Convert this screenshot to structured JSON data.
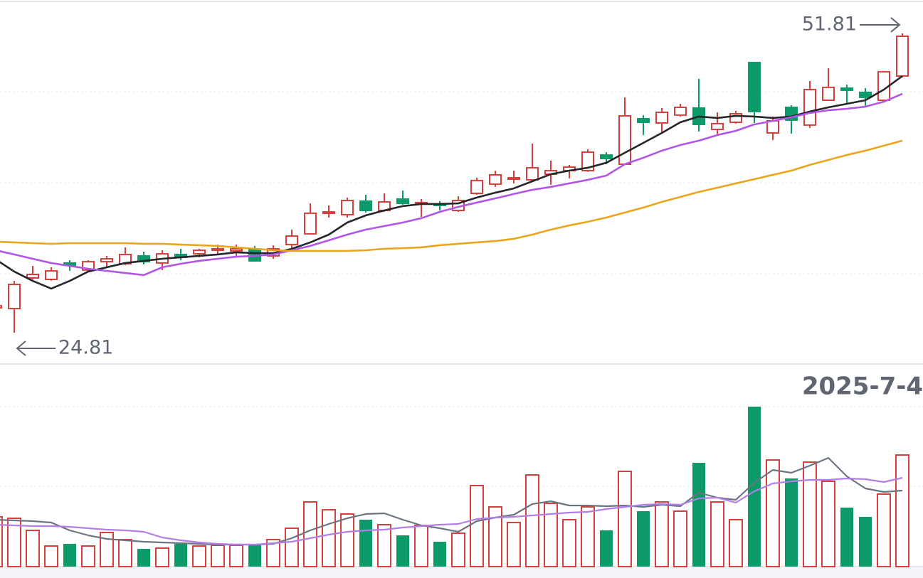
{
  "chart_data": {
    "type": "candlestick",
    "ylim": [
      21.99,
      54.82
    ],
    "open": [
      27.06,
      26.99,
      29.75,
      29.62,
      31.1,
      30.46,
      31.22,
      31.03,
      31.74,
      31.1,
      31.87,
      31.93,
      32.25,
      32.19,
      32.31,
      31.74,
      32.76,
      33.73,
      35.59,
      35.46,
      36.68,
      35.84,
      36.87,
      36.42,
      36.42,
      35.84,
      37.38,
      38.21,
      38.66,
      38.6,
      39.11,
      39.43,
      39.43,
      40.84,
      40.01,
      44.11,
      43.73,
      44.44,
      45.08,
      43.15,
      43.79,
      49.18,
      42.83,
      45.14,
      43.54,
      45.78,
      46.87,
      46.49,
      45.78,
      47.96
    ],
    "high": [
      27.57,
      29.49,
      30.84,
      30.71,
      31.35,
      31.35,
      31.74,
      32.51,
      32.12,
      32.25,
      32.38,
      32.38,
      32.76,
      32.76,
      32.64,
      32.7,
      34.11,
      36.48,
      36.29,
      37.0,
      37.25,
      37.38,
      37.64,
      36.87,
      36.68,
      37.12,
      38.79,
      39.43,
      39.43,
      41.87,
      40.33,
      39.95,
      41.36,
      41.1,
      46.04,
      44.44,
      45.08,
      45.46,
      47.71,
      44.69,
      44.82,
      49.18,
      44.31,
      45.33,
      47.51,
      48.67,
      47.19,
      46.87,
      48.35,
      51.81
    ],
    "low": [
      26.93,
      24.81,
      29.62,
      29.49,
      30.39,
      30.33,
      30.78,
      30.9,
      30.97,
      30.46,
      31.35,
      31.61,
      31.87,
      31.74,
      31.22,
      31.48,
      32.44,
      33.66,
      35.2,
      35.2,
      35.65,
      35.71,
      36.36,
      35.26,
      35.84,
      35.71,
      37.25,
      37.96,
      38.28,
      38.47,
      38.15,
      38.73,
      39.31,
      40.01,
      39.95,
      42.64,
      42.9,
      44.31,
      42.96,
      42.64,
      43.67,
      43.73,
      42.19,
      42.77,
      43.28,
      45.72,
      45.46,
      45.2,
      45.65,
      47.83
    ],
    "close": [
      27.25,
      29.17,
      30.07,
      30.39,
      30.9,
      31.22,
      31.48,
      31.87,
      31.22,
      31.93,
      31.61,
      32.25,
      32.38,
      32.38,
      31.29,
      32.38,
      33.53,
      35.59,
      35.71,
      36.74,
      35.84,
      36.61,
      36.48,
      36.55,
      36.29,
      36.74,
      38.54,
      39.05,
      38.79,
      39.69,
      39.43,
      39.75,
      41.1,
      40.52,
      44.37,
      43.79,
      44.69,
      45.14,
      43.6,
      43.67,
      44.56,
      44.76,
      43.92,
      43.99,
      46.74,
      46.94,
      46.68,
      46.04,
      48.35,
      51.55
    ],
    "up_color": "#d6403c",
    "down_color": "#0c9a68",
    "moving_averages": [
      {
        "color": "#24262b",
        "values": [
          31.42,
          30.33,
          29.49,
          28.79,
          29.49,
          30.33,
          30.71,
          31.1,
          31.29,
          31.48,
          31.61,
          31.74,
          31.87,
          32.06,
          31.99,
          31.99,
          32.38,
          32.96,
          33.66,
          34.75,
          35.39,
          35.84,
          36.23,
          36.42,
          36.42,
          36.48,
          37.0,
          37.44,
          37.83,
          38.47,
          39.11,
          39.43,
          39.69,
          40.14,
          41.04,
          41.93,
          42.83,
          43.79,
          44.31,
          44.18,
          44.37,
          44.31,
          44.18,
          44.31,
          44.76,
          45.14,
          45.46,
          45.78,
          46.74,
          47.96
        ]
      },
      {
        "color": "#b055e6",
        "values": [
          32.25,
          31.87,
          31.48,
          31.1,
          30.84,
          30.58,
          30.39,
          30.2,
          30.01,
          30.71,
          31.03,
          31.29,
          31.48,
          31.67,
          31.74,
          31.87,
          32.25,
          32.64,
          33.15,
          33.66,
          34.11,
          34.43,
          34.75,
          35.14,
          35.71,
          36.16,
          36.55,
          36.93,
          37.32,
          37.7,
          37.96,
          38.28,
          38.6,
          38.98,
          40.01,
          40.59,
          41.23,
          41.74,
          42.13,
          42.64,
          43.02,
          43.6,
          43.92,
          44.24,
          44.63,
          44.88,
          45.01,
          45.2,
          45.65,
          46.36
        ]
      },
      {
        "color": "#eaa51a",
        "values": [
          33.02,
          32.96,
          32.89,
          32.83,
          32.89,
          32.89,
          32.89,
          32.89,
          32.83,
          32.83,
          32.76,
          32.7,
          32.64,
          32.51,
          32.38,
          32.25,
          32.19,
          32.19,
          32.19,
          32.19,
          32.25,
          32.38,
          32.44,
          32.51,
          32.7,
          32.83,
          32.96,
          33.08,
          33.28,
          33.66,
          34.11,
          34.49,
          34.82,
          35.2,
          35.65,
          36.1,
          36.61,
          37.06,
          37.51,
          37.89,
          38.28,
          38.66,
          39.05,
          39.43,
          39.95,
          40.39,
          40.84,
          41.23,
          41.68,
          42.13
        ]
      }
    ],
    "annotations": [
      {
        "value": 51.81,
        "label": "51.81"
      },
      {
        "value": 24.81,
        "label": "24.81"
      }
    ],
    "date": "2025-7-4",
    "volume": {
      "ylim": [
        0,
        225
      ],
      "values": [
        70,
        68,
        51,
        29,
        32,
        29,
        48,
        38,
        25,
        26,
        32,
        29,
        30,
        30,
        32,
        38,
        54,
        91,
        80,
        74,
        66,
        59,
        44,
        58,
        35,
        47,
        114,
        84,
        62,
        129,
        89,
        66,
        84,
        51,
        134,
        78,
        91,
        78,
        146,
        91,
        66,
        225,
        150,
        124,
        147,
        120,
        83,
        70,
        102,
        157
      ],
      "averages": [
        {
          "color": "#6b7480",
          "values": [
            66,
            65,
            64,
            62,
            51,
            44,
            39,
            37,
            35,
            34,
            33,
            32,
            31,
            31,
            31,
            32,
            40,
            51,
            60,
            68,
            74,
            75,
            66,
            58,
            54,
            49,
            64,
            69,
            73,
            88,
            92,
            86,
            86,
            85,
            86,
            84,
            87,
            85,
            104,
            97,
            94,
            118,
            136,
            132,
            142,
            153,
            127,
            110,
            105,
            107
          ]
        },
        {
          "color": "#b27de8",
          "values": [
            59,
            58,
            57,
            57,
            56,
            54,
            52,
            51,
            49,
            41,
            37,
            34,
            32,
            31,
            31,
            33,
            35,
            40,
            45,
            49,
            51,
            52,
            55,
            57,
            59,
            60,
            67,
            69,
            70,
            72,
            74,
            76,
            77,
            81,
            84,
            87,
            88,
            87,
            96,
            97,
            90,
            106,
            117,
            120,
            122,
            122,
            124,
            123,
            119,
            125
          ]
        }
      ]
    }
  }
}
